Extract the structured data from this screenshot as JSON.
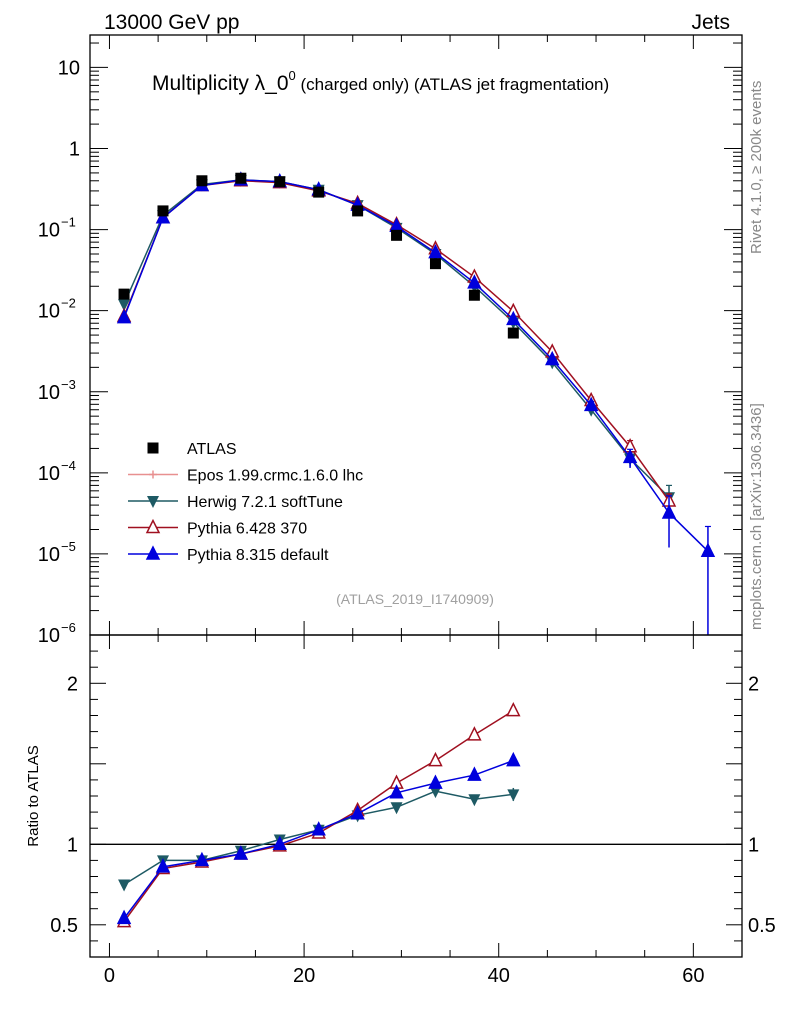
{
  "header": {
    "left": "13000 GeV pp",
    "right": "Jets"
  },
  "title": {
    "main": "Multiplicity λ_0",
    "sup": "0",
    "suffix": " (charged only) (ATLAS jet fragmentation)"
  },
  "side_labels": {
    "rivet": "Rivet 4.1.0, ≥ 200k events",
    "mcplots": "mcplots.cern.ch [arXiv:1306.3436]"
  },
  "analysis_id": "(ATLAS_2019_I1740909)",
  "ratio_ylabel": "Ratio to ATLAS",
  "colors": {
    "atlas": "#000000",
    "epos": "#e89090",
    "herwig": "#1e5a64",
    "pythia6": "#a01020",
    "pythia8": "#0000dd"
  },
  "legend": [
    {
      "key": "atlas",
      "label": "ATLAS"
    },
    {
      "key": "epos",
      "label": "Epos 1.99.crmc.1.6.0 lhc"
    },
    {
      "key": "herwig",
      "label": "Herwig 7.2.1 softTune"
    },
    {
      "key": "pythia6",
      "label": "Pythia 6.428 370"
    },
    {
      "key": "pythia8",
      "label": "Pythia 8.315 default"
    }
  ],
  "chart_data": {
    "type": "line",
    "xlim": [
      -2,
      65
    ],
    "main_ylim_log10": [
      -6,
      1.4
    ],
    "ratio_ylim": [
      0.3,
      2.3
    ],
    "x_ticks": [
      0,
      20,
      40,
      60
    ],
    "main_y_ticks": [
      {
        "exp": 1,
        "label": "10",
        "sup": ""
      },
      {
        "exp": 0,
        "label": "1",
        "sup": ""
      },
      {
        "exp": -1,
        "label": "10",
        "sup": "−1"
      },
      {
        "exp": -2,
        "label": "10",
        "sup": "−2"
      },
      {
        "exp": -3,
        "label": "10",
        "sup": "−3"
      },
      {
        "exp": -4,
        "label": "10",
        "sup": "−4"
      },
      {
        "exp": -5,
        "label": "10",
        "sup": "−5"
      },
      {
        "exp": -6,
        "label": "10",
        "sup": "−6"
      }
    ],
    "ratio_y_ticks": [
      {
        "value": 0.5,
        "label": "0.5"
      },
      {
        "value": 1,
        "label": "1"
      },
      {
        "value": 2,
        "label": "2"
      }
    ],
    "atlas": {
      "name": "ATLAS",
      "x": [
        1.5,
        5.5,
        9.5,
        13.5,
        17.5,
        21.5,
        25.5,
        29.5,
        33.5,
        37.5,
        41.5
      ],
      "y": [
        0.016,
        0.17,
        0.4,
        0.43,
        0.39,
        0.29,
        0.17,
        0.085,
        0.038,
        0.0155,
        0.0053
      ]
    },
    "series": [
      {
        "key": "herwig",
        "name": "Herwig 7.2.1 softTune",
        "marker": "tri-down-filled",
        "x": [
          1.5,
          5.5,
          9.5,
          13.5,
          17.5,
          21.5,
          25.5,
          29.5,
          33.5,
          37.5,
          41.5,
          45.5,
          49.5,
          53.5,
          57.5
        ],
        "y": [
          0.012,
          0.15,
          0.36,
          0.41,
          0.39,
          0.31,
          0.2,
          0.105,
          0.05,
          0.02,
          0.0072,
          0.0023,
          0.0006,
          0.00015,
          5e-05
        ],
        "yerr": [
          0,
          0,
          0,
          0,
          0,
          0,
          0,
          0,
          0,
          0,
          0,
          0,
          8e-05,
          3e-05,
          2e-05
        ],
        "ratio_x": [
          1.5,
          5.5,
          9.5,
          13.5,
          17.5,
          21.5,
          25.5,
          29.5,
          33.5,
          37.5,
          41.5
        ],
        "ratio": [
          0.75,
          0.9,
          0.9,
          0.96,
          1.03,
          1.09,
          1.18,
          1.23,
          1.33,
          1.28,
          1.31
        ],
        "ratio_err": [
          0.02,
          0,
          0,
          0,
          0,
          0,
          0,
          0,
          0,
          0,
          0.04
        ]
      },
      {
        "key": "pythia6",
        "name": "Pythia 6.428 370",
        "marker": "tri-up-open",
        "x": [
          1.5,
          5.5,
          9.5,
          13.5,
          17.5,
          21.5,
          25.5,
          29.5,
          33.5,
          37.5,
          41.5,
          45.5,
          49.5,
          53.5,
          57.5
        ],
        "y": [
          0.0085,
          0.14,
          0.35,
          0.4,
          0.38,
          0.3,
          0.21,
          0.115,
          0.058,
          0.026,
          0.0098,
          0.0031,
          0.00078,
          0.00021,
          4.5e-05
        ],
        "yerr": [
          0,
          0,
          0,
          0,
          0,
          0,
          0,
          0,
          0,
          0,
          0,
          0,
          8e-05,
          4e-05,
          1e-05
        ],
        "ratio_x": [
          1.5,
          5.5,
          9.5,
          13.5,
          17.5,
          21.5,
          25.5,
          29.5,
          33.5,
          37.5,
          41.5
        ],
        "ratio": [
          0.52,
          0.85,
          0.89,
          0.94,
          0.99,
          1.07,
          1.21,
          1.38,
          1.52,
          1.68,
          1.83
        ],
        "ratio_err": [
          0.02,
          0,
          0,
          0,
          0,
          0,
          0,
          0,
          0,
          0,
          0.03
        ]
      },
      {
        "key": "pythia8",
        "name": "Pythia 8.315 default",
        "marker": "tri-up-filled",
        "x": [
          1.5,
          5.5,
          9.5,
          13.5,
          17.5,
          21.5,
          25.5,
          29.5,
          33.5,
          37.5,
          41.5,
          45.5,
          49.5,
          53.5,
          57.5,
          61.5
        ],
        "y": [
          0.0082,
          0.14,
          0.35,
          0.41,
          0.39,
          0.31,
          0.2,
          0.11,
          0.052,
          0.022,
          0.0078,
          0.0025,
          0.00068,
          0.000155,
          3.2e-05,
          1.08e-05
        ],
        "yerr": [
          0,
          0,
          0,
          0,
          0,
          0,
          0,
          0,
          0,
          0,
          0,
          0,
          8e-05,
          4e-05,
          2e-05,
          1.1e-05
        ],
        "ratio_x": [
          1.5,
          5.5,
          9.5,
          13.5,
          17.5,
          21.5,
          25.5,
          29.5,
          33.5,
          37.5,
          41.5
        ],
        "ratio": [
          0.54,
          0.86,
          0.9,
          0.94,
          1.0,
          1.09,
          1.19,
          1.32,
          1.38,
          1.43,
          1.52
        ],
        "ratio_err": [
          0.02,
          0,
          0,
          0,
          0,
          0,
          0,
          0,
          0,
          0,
          0.03
        ]
      }
    ]
  }
}
